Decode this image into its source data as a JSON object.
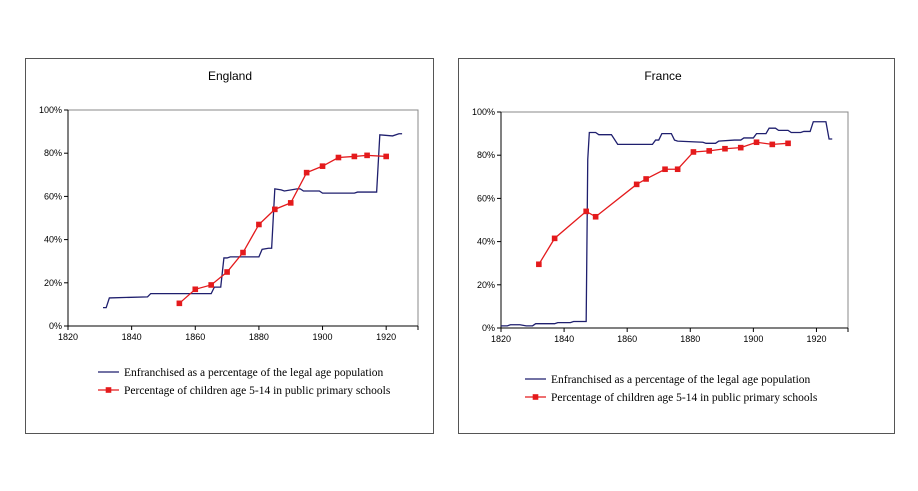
{
  "chart_data": [
    {
      "type": "line",
      "title": "England",
      "xlabel": "",
      "ylabel": "",
      "xlim": [
        1820,
        1930
      ],
      "ylim": [
        0,
        100
      ],
      "xticks": [
        "1820",
        "1840",
        "1860",
        "1880",
        "1900",
        "1920"
      ],
      "yticks": [
        "0%",
        "20%",
        "40%",
        "60%",
        "80%",
        "100%"
      ],
      "grid": false,
      "legend_position": "bottom",
      "series": [
        {
          "name": "Enfranchised as a percentage of the legal age population",
          "color": "#1f1f6e",
          "marker": "none",
          "x": [
            1831,
            1832,
            1833,
            1845,
            1846,
            1865,
            1866,
            1868,
            1869,
            1870,
            1871,
            1880,
            1881,
            1883,
            1884,
            1885,
            1887,
            1888,
            1892,
            1893,
            1894,
            1899,
            1900,
            1910,
            1911,
            1917,
            1918,
            1922,
            1924,
            1925
          ],
          "y": [
            8.5,
            8.5,
            13,
            13.5,
            15,
            15,
            18,
            18,
            31.5,
            31.5,
            32,
            32,
            35.5,
            36,
            36,
            63.5,
            63,
            62.5,
            63.5,
            63.5,
            62.5,
            62.5,
            61.5,
            61.5,
            62,
            62,
            88.5,
            88,
            89,
            89
          ]
        },
        {
          "name": "Percentage of children age 5-14 in public primary schools",
          "color": "#e41a1c",
          "marker": "square",
          "x": [
            1855,
            1860,
            1865,
            1870,
            1875,
            1880,
            1885,
            1890,
            1895,
            1900,
            1905,
            1910,
            1914,
            1920
          ],
          "y": [
            10.5,
            17,
            19,
            25,
            34,
            47,
            54,
            57,
            71,
            74,
            78,
            78.5,
            79,
            78.5
          ]
        }
      ]
    },
    {
      "type": "line",
      "title": "France",
      "xlabel": "",
      "ylabel": "",
      "xlim": [
        1820,
        1930
      ],
      "ylim": [
        0,
        100
      ],
      "xticks": [
        "1820",
        "1840",
        "1860",
        "1880",
        "1900",
        "1920"
      ],
      "yticks": [
        "0%",
        "20%",
        "40%",
        "60%",
        "80%",
        "100%"
      ],
      "grid": false,
      "legend_position": "bottom",
      "series": [
        {
          "name": "Enfranchised as a percentage of the legal age population",
          "color": "#1f1f6e",
          "marker": "none",
          "x": [
            1820,
            1822,
            1823,
            1826,
            1828,
            1830,
            1831,
            1837,
            1838,
            1842,
            1843,
            1847,
            1847.5,
            1848,
            1850,
            1851,
            1855,
            1857,
            1868,
            1869,
            1870,
            1871,
            1874,
            1875,
            1876,
            1884,
            1885,
            1888,
            1889,
            1894,
            1896,
            1897,
            1900,
            1901,
            1904,
            1905,
            1907,
            1908,
            1911,
            1912,
            1915,
            1916,
            1918,
            1919,
            1923,
            1924,
            1925
          ],
          "y": [
            1,
            1,
            1.5,
            1.5,
            1,
            1,
            2,
            2,
            2.5,
            2.5,
            3,
            3,
            78,
            90.5,
            90.5,
            89.5,
            89.5,
            85,
            85,
            87,
            87,
            90,
            90,
            87,
            86.5,
            86,
            85.5,
            85.5,
            86.5,
            87,
            87,
            88,
            88,
            90,
            90,
            92.5,
            92.5,
            91.5,
            91.5,
            90.5,
            90.5,
            91,
            91,
            95.5,
            95.5,
            87.5,
            87.5
          ]
        },
        {
          "name": "Percentage of children age 5-14 in public primary schools",
          "color": "#e41a1c",
          "marker": "square",
          "x": [
            1832,
            1837,
            1847,
            1850,
            1863,
            1866,
            1872,
            1876,
            1881,
            1886,
            1891,
            1896,
            1901,
            1906,
            1911
          ],
          "y": [
            29.5,
            41.5,
            54,
            51.5,
            66.5,
            69,
            73.5,
            73.5,
            81.5,
            82,
            83,
            83.5,
            86,
            85,
            85.5
          ]
        }
      ]
    }
  ]
}
